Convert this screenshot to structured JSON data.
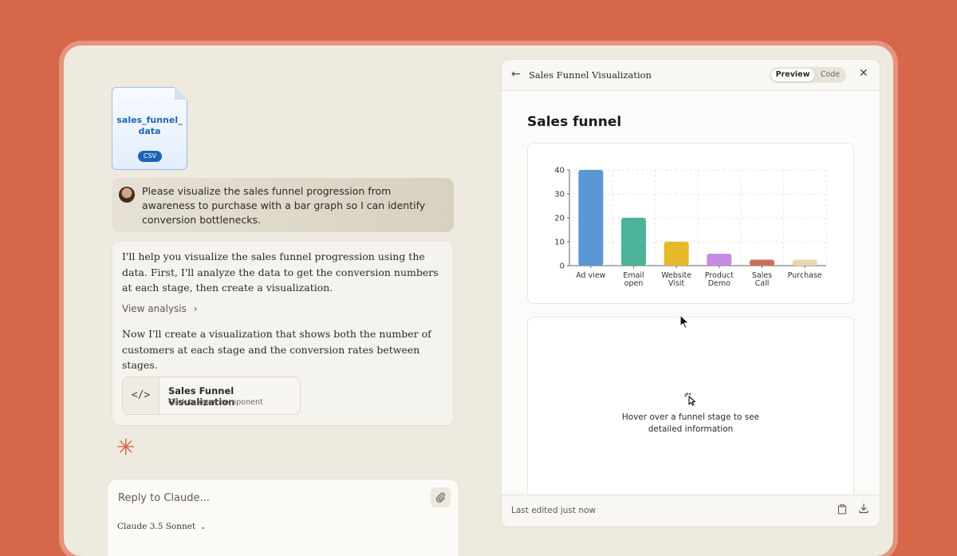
{
  "file": {
    "name_line1": "sales_funnel_",
    "name_line2": "data",
    "type": "CSV"
  },
  "user_message": "Please visualize the sales funnel progression from awareness to purchase with a bar graph so I can identify conversion bottlenecks.",
  "assistant": {
    "intro": "I'll help you visualize the sales funnel progression using the data. First, I'll analyze the data to get the conversion numbers at each stage, then create a visualization.",
    "view_analysis": "View analysis",
    "followup": "Now I'll create a visualization that shows both the number of customers at each stage and the conversion rates between stages.",
    "component": {
      "title": "Sales Funnel Visualization",
      "subtitle": "Click to open component",
      "icon": "</>"
    }
  },
  "reply": {
    "placeholder": "Reply to Claude...",
    "model": "Claude 3.5 Sonnet"
  },
  "panel": {
    "title": "Sales Funnel Visualization",
    "tab_preview": "Preview",
    "tab_code": "Code",
    "heading": "Sales funnel",
    "hover_hint_line1": "Hover over a funnel stage to see",
    "hover_hint_line2": "detailed information",
    "footer_status": "Last edited just now"
  },
  "colors": {
    "background": "#d7674a",
    "accent": "#d5623f",
    "file_blue": "#1f63b6"
  },
  "icons": {
    "back": "back-arrow-icon",
    "close": "close-icon",
    "attach": "paperclip-icon",
    "copy": "clipboard-icon",
    "download": "download-icon",
    "pointer": "pointer-click-icon",
    "logo": "claude-spark-icon"
  },
  "chart_data": {
    "type": "bar",
    "categories": [
      [
        "Ad view"
      ],
      [
        "Email",
        "open"
      ],
      [
        "Website",
        "Visit"
      ],
      [
        "Product",
        "Demo"
      ],
      [
        "Sales",
        "Call"
      ],
      [
        "Purchase"
      ]
    ],
    "values": [
      40,
      20,
      10,
      5,
      2.5,
      2.5
    ],
    "colors": [
      "#5b97d4",
      "#4db39a",
      "#e6b92a",
      "#c88be0",
      "#c9705c",
      "#e8d6b0"
    ],
    "yticks": [
      0,
      10,
      20,
      30,
      40
    ],
    "ylim": [
      0,
      40
    ],
    "grid": true
  }
}
